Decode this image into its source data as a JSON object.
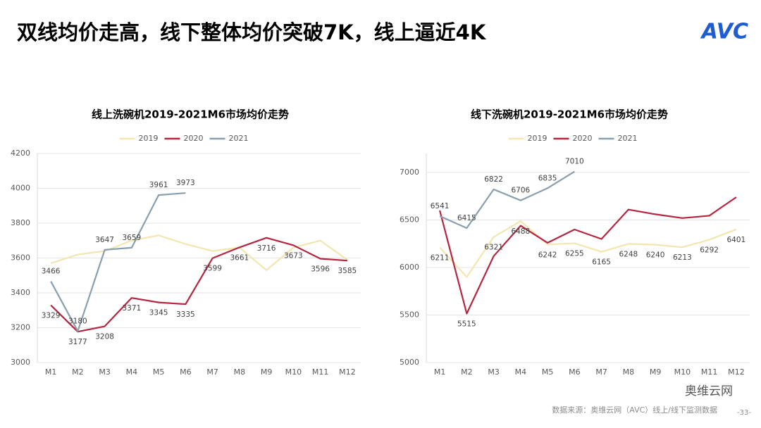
{
  "title": "双线均价走高，线下整体均价突破7K，线上逼近4K",
  "logo": "AVC",
  "source": "数据来源：奥维云网（AVC）线上/线下监测数据",
  "wechat": "奥维云网",
  "page": "-33-",
  "chart_data": [
    {
      "type": "line",
      "title": "线上洗碗机2019-2021M6市场均价走势",
      "categories": [
        "M1",
        "M2",
        "M3",
        "M4",
        "M5",
        "M6",
        "M7",
        "M8",
        "M9",
        "M10",
        "M11",
        "M12"
      ],
      "ylim": [
        3000,
        4200
      ],
      "yticks": [
        3000,
        3200,
        3400,
        3600,
        3800,
        4000,
        4200
      ],
      "grid": true,
      "legend": "top",
      "series": [
        {
          "name": "2019",
          "color": "#f3e6b0",
          "values": [
            3570,
            3620,
            3640,
            3700,
            3730,
            3680,
            3640,
            3660,
            3530,
            3660,
            3700,
            3590
          ]
        },
        {
          "name": "2020",
          "color": "#b5253f",
          "values": [
            3329,
            3177,
            3208,
            3371,
            3345,
            3335,
            3599,
            3661,
            3716,
            3673,
            3596,
            3585
          ],
          "value_labels": [
            "3329",
            "3177",
            "3208",
            "3371",
            "3345",
            "3335",
            "3599",
            "3661",
            "3716",
            "3673",
            "3596",
            "3585"
          ],
          "label_position": "below"
        },
        {
          "name": "2021",
          "color": "#8a9fad",
          "values": [
            3466,
            3180,
            3647,
            3659,
            3961,
            3973,
            null,
            null,
            null,
            null,
            null,
            null
          ],
          "value_labels": [
            "3466",
            "3180",
            "3647",
            "3659",
            "3961",
            "3973",
            null,
            null,
            null,
            null,
            null,
            null
          ],
          "label_position": "above"
        }
      ]
    },
    {
      "type": "line",
      "title": "线下洗碗机2019-2021M6市场均价走势",
      "categories": [
        "M1",
        "M2",
        "M3",
        "M4",
        "M5",
        "M6",
        "M7",
        "M8",
        "M9",
        "M10",
        "M11",
        "M12"
      ],
      "ylim": [
        5000,
        7200
      ],
      "yticks": [
        5000,
        5500,
        6000,
        6500,
        7000
      ],
      "grid": true,
      "legend": "top",
      "series": [
        {
          "name": "2019",
          "color": "#f3e6b0",
          "values": [
            6211,
            5900,
            6321,
            6488,
            6242,
            6255,
            6165,
            6248,
            6240,
            6213,
            6292,
            6401
          ],
          "value_labels": [
            "6211",
            null,
            "6321",
            "6488",
            "6242",
            "6255",
            "6165",
            "6248",
            "6240",
            "6213",
            "6292",
            "6401"
          ],
          "label_position": "below"
        },
        {
          "name": "2020",
          "color": "#b5253f",
          "values": [
            6600,
            5515,
            6120,
            6440,
            6260,
            6400,
            6300,
            6610,
            6560,
            6520,
            6545,
            6740
          ],
          "value_labels": [
            null,
            "5515",
            null,
            null,
            null,
            null,
            null,
            null,
            null,
            null,
            null,
            null
          ],
          "label_position": "below"
        },
        {
          "name": "2021",
          "color": "#8a9fad",
          "values": [
            6541,
            6415,
            6822,
            6706,
            6835,
            7010,
            null,
            null,
            null,
            null,
            null,
            null
          ],
          "value_labels": [
            "6541",
            "6415",
            "6822",
            "6706",
            "6835",
            "7010",
            null,
            null,
            null,
            null,
            null,
            null
          ],
          "label_position": "above"
        }
      ]
    }
  ]
}
